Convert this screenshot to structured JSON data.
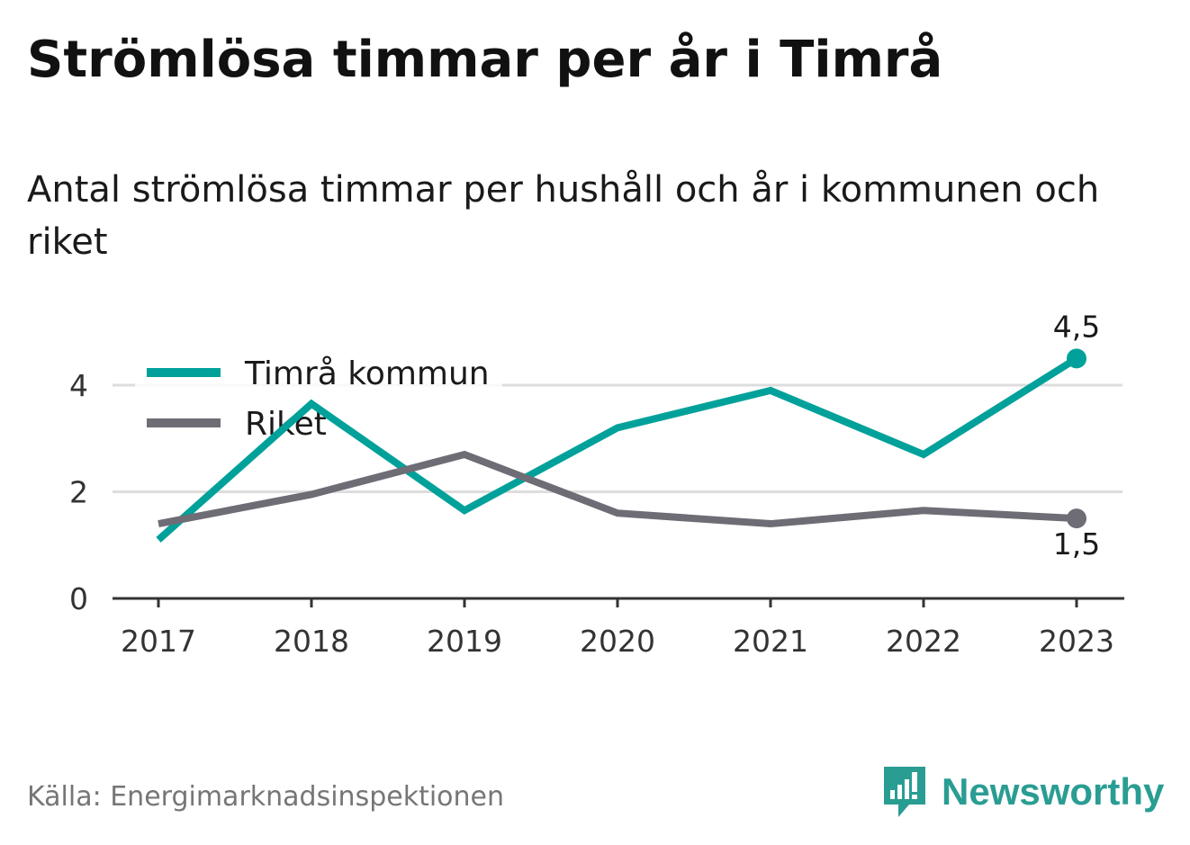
{
  "title": "Strömlösa timmar per år i Timrå",
  "subtitle": "Antal strömlösa timmar per hushåll och år i kommunen och riket",
  "source": "Källa: Energimarknadsinspektionen",
  "brand": {
    "name": "Newsworthy",
    "icon": "newsworthy-logo-icon",
    "color": "#2a9d93"
  },
  "chart_data": {
    "type": "line",
    "x": [
      "2017",
      "2018",
      "2019",
      "2020",
      "2021",
      "2022",
      "2023"
    ],
    "yticks": [
      "0",
      "2",
      "4"
    ],
    "ylim": [
      0,
      5.2
    ],
    "grid": true,
    "legend_position": "top-left",
    "series": [
      {
        "name": "Timrå kommun",
        "color": "#00a19a",
        "values": [
          1.1,
          3.65,
          1.65,
          3.2,
          3.9,
          2.7,
          4.5
        ],
        "end_label": "4,5"
      },
      {
        "name": "Riket",
        "color": "#6e6d75",
        "values": [
          1.4,
          1.95,
          2.7,
          1.6,
          1.4,
          1.65,
          1.5
        ],
        "end_label": "1,5"
      }
    ]
  }
}
